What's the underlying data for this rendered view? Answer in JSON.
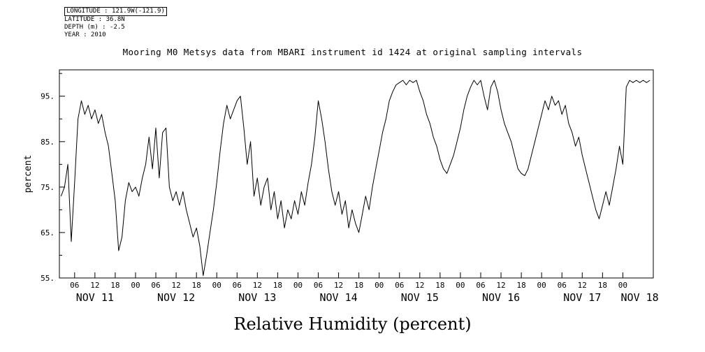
{
  "page": {
    "background": "#ffffff",
    "foreground": "#000000"
  },
  "metadata": {
    "lines": [
      "LONGITUDE : 121.9W(-121.9)",
      "LATITUDE : 36.8N",
      "DEPTH (m) : -2.5",
      "YEAR : 2010"
    ]
  },
  "title": "Mooring M0 Metsys data from MBARI instrument id 1424 at original sampling intervals",
  "chart_data": {
    "type": "line",
    "title": "Mooring M0 Metsys data from MBARI instrument id 1424 at original sampling intervals",
    "xlabel": "Relative Humidity (percent)",
    "ylabel": "percent",
    "x_axis_unit": "hours since NOV 11 2010 00:00",
    "xlim_hours": [
      1.5,
      177
    ],
    "ylim": [
      55,
      100.8
    ],
    "grid": false,
    "legend": false,
    "line_color": "#000000",
    "y_ticks": [
      {
        "value": 95,
        "label": "95."
      },
      {
        "value": 85,
        "label": "85."
      },
      {
        "value": 75,
        "label": "75."
      },
      {
        "value": 65,
        "label": "65."
      },
      {
        "value": 55,
        "label": "55."
      }
    ],
    "y_minor_ticks": [
      60,
      70,
      80,
      90,
      100
    ],
    "x_ticks": [
      {
        "hour": 6,
        "label": "06"
      },
      {
        "hour": 12,
        "label": "12"
      },
      {
        "hour": 18,
        "label": "18"
      },
      {
        "hour": 24,
        "label": "00"
      },
      {
        "hour": 30,
        "label": "06"
      },
      {
        "hour": 36,
        "label": "12"
      },
      {
        "hour": 42,
        "label": "18"
      },
      {
        "hour": 48,
        "label": "00"
      },
      {
        "hour": 54,
        "label": "06"
      },
      {
        "hour": 60,
        "label": "12"
      },
      {
        "hour": 66,
        "label": "18"
      },
      {
        "hour": 72,
        "label": "00"
      },
      {
        "hour": 78,
        "label": "06"
      },
      {
        "hour": 84,
        "label": "12"
      },
      {
        "hour": 90,
        "label": "18"
      },
      {
        "hour": 96,
        "label": "00"
      },
      {
        "hour": 102,
        "label": "06"
      },
      {
        "hour": 108,
        "label": "12"
      },
      {
        "hour": 114,
        "label": "18"
      },
      {
        "hour": 120,
        "label": "00"
      },
      {
        "hour": 126,
        "label": "06"
      },
      {
        "hour": 132,
        "label": "12"
      },
      {
        "hour": 138,
        "label": "18"
      },
      {
        "hour": 144,
        "label": "00"
      },
      {
        "hour": 150,
        "label": "06"
      },
      {
        "hour": 156,
        "label": "12"
      },
      {
        "hour": 162,
        "label": "18"
      },
      {
        "hour": 168,
        "label": "00"
      }
    ],
    "day_labels": [
      {
        "hour": 12,
        "label": "NOV 11"
      },
      {
        "hour": 36,
        "label": "NOV 12"
      },
      {
        "hour": 60,
        "label": "NOV 13"
      },
      {
        "hour": 84,
        "label": "NOV 14"
      },
      {
        "hour": 108,
        "label": "NOV 15"
      },
      {
        "hour": 132,
        "label": "NOV 16"
      },
      {
        "hour": 156,
        "label": "NOV 17"
      },
      {
        "hour": 173,
        "label": "NOV 18"
      }
    ],
    "series": [
      {
        "name": "relative_humidity_percent",
        "t_start_hour": 2,
        "t_step_hours": 1,
        "values": [
          73,
          75,
          80,
          63,
          76,
          90,
          94,
          91,
          93,
          90,
          92,
          89,
          91,
          87,
          84,
          78,
          72,
          61,
          64,
          72,
          76,
          74,
          75,
          73,
          77,
          80,
          86,
          79,
          88,
          77,
          87,
          88,
          75,
          72,
          74,
          71,
          74,
          70,
          67,
          64,
          66,
          62,
          55.5,
          60,
          65,
          70,
          76,
          83,
          89,
          93,
          90,
          92,
          94,
          95,
          88,
          80,
          85,
          73,
          77,
          71,
          75,
          77,
          70,
          74,
          68,
          72,
          66,
          70,
          68,
          72,
          69,
          74,
          71,
          76,
          80,
          86,
          94,
          90,
          85,
          79,
          74,
          71,
          74,
          69,
          72,
          66,
          70,
          67,
          65,
          69,
          73,
          70,
          75,
          79,
          83,
          87,
          90,
          94,
          96,
          97.5,
          98,
          98.5,
          97.5,
          98.5,
          98,
          98.5,
          96,
          94,
          91,
          89,
          86,
          84,
          81,
          79,
          78,
          80,
          82,
          85,
          88,
          92,
          95,
          97,
          98.5,
          97.5,
          98.5,
          95,
          92,
          97,
          98.5,
          96,
          92,
          89,
          87,
          85,
          82,
          79,
          78,
          77.5,
          79,
          82,
          85,
          88,
          91,
          94,
          92,
          95,
          93,
          94,
          91,
          93,
          89,
          87,
          84,
          86,
          82,
          79,
          76,
          73,
          70,
          68,
          71,
          74,
          71,
          75,
          79,
          84,
          80,
          97,
          98.5,
          98,
          98.5,
          98,
          98.5,
          98,
          98.5
        ]
      }
    ]
  }
}
